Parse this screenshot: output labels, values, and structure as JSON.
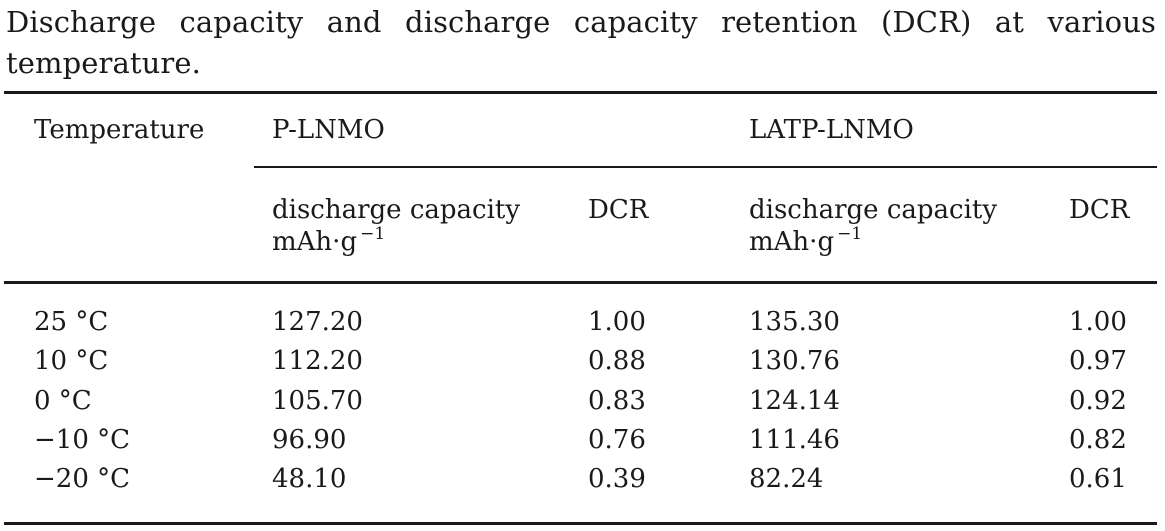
{
  "caption": "Discharge capacity and discharge capacity retention (DCR) at various temperature.",
  "table": {
    "header": {
      "temperature": "Temperature",
      "group_p": "P-LNMO",
      "group_latp": "LATP-LNMO",
      "cap_label": "discharge capacity",
      "cap_unit": "mAh·g",
      "cap_unit_sup": "−1",
      "dcr_label": "DCR"
    },
    "rows": [
      {
        "temperature": "25 °C",
        "p_capacity": "127.20",
        "p_dcr": "1.00",
        "latp_capacity": "135.30",
        "latp_dcr": "1.00"
      },
      {
        "temperature": "10 °C",
        "p_capacity": "112.20",
        "p_dcr": "0.88",
        "latp_capacity": "130.76",
        "latp_dcr": "0.97"
      },
      {
        "temperature": "0 °C",
        "p_capacity": "105.70",
        "p_dcr": "0.83",
        "latp_capacity": "124.14",
        "latp_dcr": "0.92"
      },
      {
        "temperature": "−10 °C",
        "p_capacity": "96.90",
        "p_dcr": "0.76",
        "latp_capacity": "111.46",
        "latp_dcr": "0.82"
      },
      {
        "temperature": "−20 °C",
        "p_capacity": "48.10",
        "p_dcr": "0.39",
        "latp_capacity": "82.24",
        "latp_dcr": "0.61"
      }
    ]
  }
}
